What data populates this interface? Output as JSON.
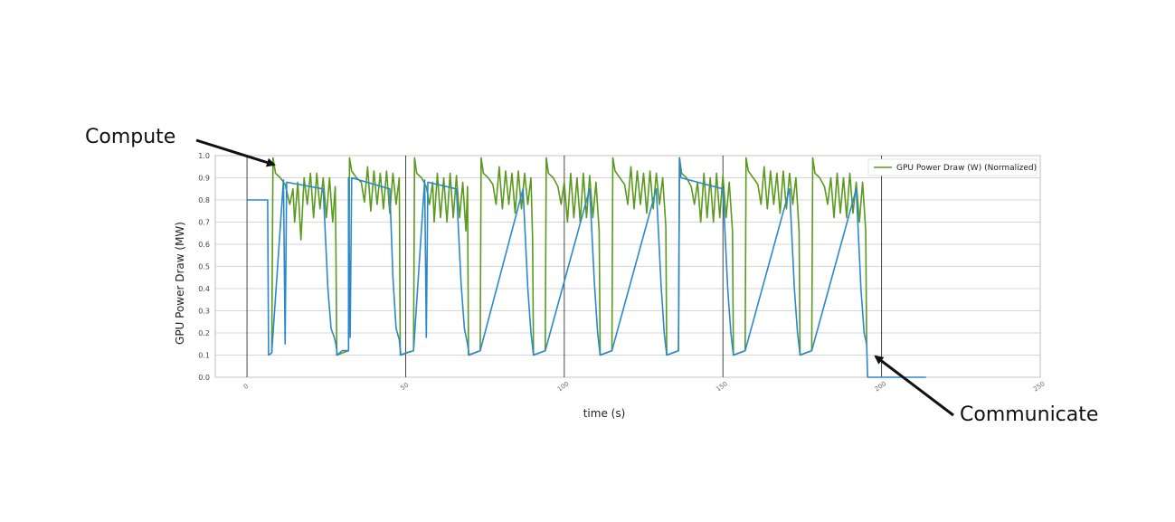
{
  "annotations": {
    "compute": "Compute",
    "communicate": "Communicate"
  },
  "colors": {
    "compute_series": "#5a9a1e",
    "communicate_series": "#2b88cc",
    "grid": "#c8c8c8",
    "arrow": "#111111"
  },
  "chart_data": {
    "type": "line",
    "title": "",
    "xlabel": "time (s)",
    "ylabel": "GPU Power Draw (MW)",
    "xlim": [
      -10,
      250
    ],
    "ylim": [
      0,
      1.0
    ],
    "x_ticks": [
      0,
      50,
      100,
      150,
      200,
      250
    ],
    "y_ticks": [
      0.0,
      0.1,
      0.2,
      0.3,
      0.4,
      0.5,
      0.6,
      0.7,
      0.8,
      0.9,
      1.0
    ],
    "y_tick_labels": [
      "0.0",
      "0.1",
      "0.2",
      "0.3",
      "0.4",
      "0.5",
      "0.6",
      "0.7",
      "0.8",
      "0.9",
      "1.0"
    ],
    "grid": true,
    "legend": {
      "placement": "top-right",
      "entries": [
        "GPU Power Draw (W) (Normalized)"
      ]
    },
    "vertical_lines_x": [
      0,
      50,
      100,
      150,
      200
    ],
    "series": [
      {
        "name": "GPU Power Draw (W) (Normalized)",
        "role": "compute",
        "points": [
          [
            7.8,
            0.11
          ],
          [
            8.2,
            0.99
          ],
          [
            9,
            0.92
          ],
          [
            10.5,
            0.9
          ],
          [
            12,
            0.87
          ],
          [
            13.5,
            0.78
          ],
          [
            14.5,
            0.85
          ],
          [
            15,
            0.7
          ],
          [
            16,
            0.88
          ],
          [
            17,
            0.62
          ],
          [
            18,
            0.9
          ],
          [
            19,
            0.78
          ],
          [
            20,
            0.92
          ],
          [
            21,
            0.72
          ],
          [
            22,
            0.92
          ],
          [
            23,
            0.76
          ],
          [
            24,
            0.9
          ],
          [
            25,
            0.72
          ],
          [
            26,
            0.9
          ],
          [
            27,
            0.7
          ],
          [
            27.8,
            0.86
          ],
          [
            28,
            0.62
          ],
          [
            28.3,
            0.1
          ],
          [
            32,
            0.12
          ],
          [
            32.3,
            0.99
          ],
          [
            33,
            0.93
          ],
          [
            34.5,
            0.9
          ],
          [
            36,
            0.88
          ],
          [
            37,
            0.79
          ],
          [
            38,
            0.95
          ],
          [
            39,
            0.75
          ],
          [
            40,
            0.93
          ],
          [
            41,
            0.78
          ],
          [
            42,
            0.92
          ],
          [
            43,
            0.76
          ],
          [
            44,
            0.93
          ],
          [
            45,
            0.74
          ],
          [
            46,
            0.92
          ],
          [
            47,
            0.78
          ],
          [
            48,
            0.9
          ],
          [
            48.3,
            0.1
          ],
          [
            52.5,
            0.12
          ],
          [
            52.8,
            0.99
          ],
          [
            53.5,
            0.92
          ],
          [
            55,
            0.9
          ],
          [
            56.5,
            0.86
          ],
          [
            57.5,
            0.78
          ],
          [
            58.5,
            0.88
          ],
          [
            59,
            0.7
          ],
          [
            60,
            0.92
          ],
          [
            61,
            0.72
          ],
          [
            62,
            0.9
          ],
          [
            63,
            0.7
          ],
          [
            64,
            0.92
          ],
          [
            65,
            0.72
          ],
          [
            66,
            0.91
          ],
          [
            67,
            0.72
          ],
          [
            68,
            0.88
          ],
          [
            69,
            0.66
          ],
          [
            69.5,
            0.86
          ],
          [
            69.8,
            0.1
          ],
          [
            73.5,
            0.12
          ],
          [
            73.8,
            0.99
          ],
          [
            74.5,
            0.92
          ],
          [
            76,
            0.9
          ],
          [
            77.5,
            0.87
          ],
          [
            78.5,
            0.78
          ],
          [
            79.5,
            0.95
          ],
          [
            80.5,
            0.76
          ],
          [
            81.5,
            0.93
          ],
          [
            82.5,
            0.78
          ],
          [
            83.5,
            0.92
          ],
          [
            84.5,
            0.74
          ],
          [
            85.5,
            0.93
          ],
          [
            86.5,
            0.76
          ],
          [
            87.5,
            0.92
          ],
          [
            88.5,
            0.78
          ],
          [
            89.5,
            0.9
          ],
          [
            90,
            0.62
          ],
          [
            90.3,
            0.1
          ],
          [
            94,
            0.12
          ],
          [
            94.3,
            0.99
          ],
          [
            95,
            0.92
          ],
          [
            96.5,
            0.9
          ],
          [
            98,
            0.86
          ],
          [
            99,
            0.78
          ],
          [
            100,
            0.88
          ],
          [
            101,
            0.7
          ],
          [
            102,
            0.92
          ],
          [
            103,
            0.72
          ],
          [
            104,
            0.9
          ],
          [
            105,
            0.7
          ],
          [
            106,
            0.92
          ],
          [
            107,
            0.72
          ],
          [
            108,
            0.91
          ],
          [
            109,
            0.72
          ],
          [
            110,
            0.88
          ],
          [
            111,
            0.66
          ],
          [
            111.3,
            0.1
          ],
          [
            115,
            0.12
          ],
          [
            115.3,
            0.99
          ],
          [
            116,
            0.93
          ],
          [
            117.5,
            0.9
          ],
          [
            119,
            0.87
          ],
          [
            120,
            0.78
          ],
          [
            121,
            0.95
          ],
          [
            122,
            0.76
          ],
          [
            123,
            0.93
          ],
          [
            124,
            0.78
          ],
          [
            125,
            0.92
          ],
          [
            126,
            0.74
          ],
          [
            127,
            0.93
          ],
          [
            128,
            0.76
          ],
          [
            129,
            0.92
          ],
          [
            130,
            0.78
          ],
          [
            131,
            0.9
          ],
          [
            132,
            0.68
          ],
          [
            132.3,
            0.1
          ],
          [
            136,
            0.12
          ],
          [
            136.3,
            0.99
          ],
          [
            137,
            0.92
          ],
          [
            138.5,
            0.9
          ],
          [
            140,
            0.86
          ],
          [
            141,
            0.78
          ],
          [
            142,
            0.88
          ],
          [
            143,
            0.7
          ],
          [
            144,
            0.92
          ],
          [
            145,
            0.72
          ],
          [
            146,
            0.9
          ],
          [
            147,
            0.7
          ],
          [
            148,
            0.92
          ],
          [
            149,
            0.72
          ],
          [
            150,
            0.91
          ],
          [
            151,
            0.72
          ],
          [
            152,
            0.88
          ],
          [
            153,
            0.66
          ],
          [
            153.3,
            0.1
          ],
          [
            157,
            0.12
          ],
          [
            157.3,
            0.99
          ],
          [
            158,
            0.93
          ],
          [
            159.5,
            0.9
          ],
          [
            161,
            0.87
          ],
          [
            162,
            0.78
          ],
          [
            163,
            0.95
          ],
          [
            164,
            0.76
          ],
          [
            165,
            0.93
          ],
          [
            166,
            0.78
          ],
          [
            167,
            0.92
          ],
          [
            168,
            0.74
          ],
          [
            169,
            0.93
          ],
          [
            170,
            0.76
          ],
          [
            171,
            0.92
          ],
          [
            172,
            0.78
          ],
          [
            173,
            0.9
          ],
          [
            174,
            0.66
          ],
          [
            174.3,
            0.1
          ],
          [
            178,
            0.12
          ],
          [
            178.3,
            0.99
          ],
          [
            179,
            0.92
          ],
          [
            180.5,
            0.9
          ],
          [
            182,
            0.86
          ],
          [
            183,
            0.78
          ],
          [
            184,
            0.9
          ],
          [
            185,
            0.72
          ],
          [
            186,
            0.92
          ],
          [
            187,
            0.74
          ],
          [
            188,
            0.9
          ],
          [
            189,
            0.72
          ],
          [
            190,
            0.92
          ],
          [
            191,
            0.74
          ],
          [
            192,
            0.88
          ],
          [
            193,
            0.7
          ],
          [
            194,
            0.88
          ],
          [
            195,
            0.66
          ],
          [
            195.3,
            0.15
          ]
        ]
      },
      {
        "name": "",
        "role": "communicate",
        "points": [
          [
            0,
            0.8
          ],
          [
            6.5,
            0.8
          ],
          [
            6.8,
            0.1
          ],
          [
            7.8,
            0.11
          ],
          [
            11.5,
            0.89
          ],
          [
            12,
            0.15
          ],
          [
            12.5,
            0.88
          ],
          [
            24,
            0.85
          ],
          [
            25.5,
            0.4
          ],
          [
            26.5,
            0.22
          ],
          [
            27.5,
            0.18
          ],
          [
            28,
            0.15
          ],
          [
            28.5,
            0.1
          ],
          [
            30,
            0.12
          ],
          [
            32,
            0.12
          ],
          [
            32,
            0.9
          ],
          [
            32.5,
            0.18
          ],
          [
            33,
            0.9
          ],
          [
            45,
            0.85
          ],
          [
            46,
            0.45
          ],
          [
            47,
            0.22
          ],
          [
            48,
            0.17
          ],
          [
            48.5,
            0.1
          ],
          [
            50,
            0.11
          ],
          [
            52.5,
            0.12
          ],
          [
            56,
            0.89
          ],
          [
            56.5,
            0.18
          ],
          [
            57,
            0.88
          ],
          [
            66,
            0.85
          ],
          [
            67.5,
            0.42
          ],
          [
            68.5,
            0.22
          ],
          [
            69.5,
            0.15
          ],
          [
            70,
            0.1
          ],
          [
            73.5,
            0.12
          ],
          [
            87,
            0.85
          ],
          [
            88.5,
            0.4
          ],
          [
            89.5,
            0.2
          ],
          [
            90.3,
            0.1
          ],
          [
            94,
            0.12
          ],
          [
            108,
            0.85
          ],
          [
            109.5,
            0.42
          ],
          [
            110.5,
            0.2
          ],
          [
            111.3,
            0.1
          ],
          [
            115,
            0.12
          ],
          [
            129,
            0.85
          ],
          [
            130.5,
            0.42
          ],
          [
            131.5,
            0.2
          ],
          [
            132.3,
            0.1
          ],
          [
            136,
            0.12
          ],
          [
            136.3,
            0.99
          ],
          [
            136.8,
            0.9
          ],
          [
            150,
            0.85
          ],
          [
            151.5,
            0.4
          ],
          [
            152.5,
            0.2
          ],
          [
            153.3,
            0.1
          ],
          [
            157,
            0.12
          ],
          [
            171,
            0.85
          ],
          [
            172.5,
            0.4
          ],
          [
            173.5,
            0.2
          ],
          [
            174.3,
            0.1
          ],
          [
            178,
            0.12
          ],
          [
            192,
            0.85
          ],
          [
            193.5,
            0.4
          ],
          [
            194.5,
            0.2
          ],
          [
            195.3,
            0.15
          ],
          [
            195.6,
            0.0
          ],
          [
            214,
            0.0
          ]
        ]
      }
    ]
  }
}
